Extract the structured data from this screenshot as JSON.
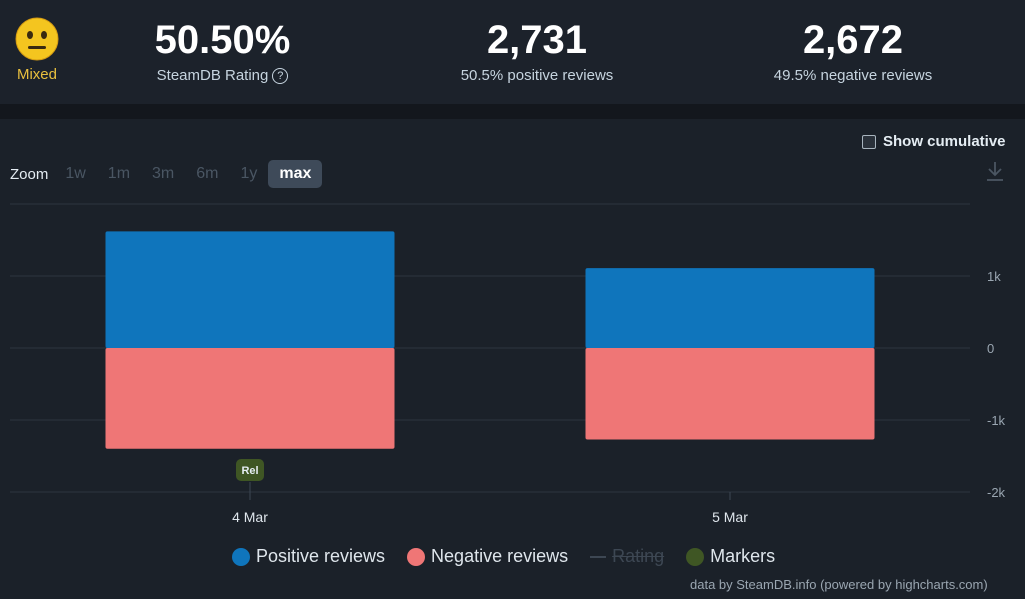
{
  "rating": {
    "label": "Mixed",
    "value": "50.50%",
    "sub": "SteamDB Rating",
    "help_icon": "?"
  },
  "positive": {
    "count": "2,731",
    "sub": "50.5% positive reviews"
  },
  "negative": {
    "count": "2,672",
    "sub": "49.5% negative reviews"
  },
  "controls": {
    "show_cumulative": "Show cumulative",
    "cumulative_checked": false,
    "zoom_label": "Zoom",
    "zoom_options": [
      "1w",
      "1m",
      "3m",
      "6m",
      "1y",
      "max"
    ],
    "zoom_active": "max"
  },
  "chart_data": {
    "type": "bar",
    "categories": [
      "4 Mar",
      "5 Mar"
    ],
    "series": [
      {
        "name": "Positive reviews",
        "values": [
          1620,
          1110
        ],
        "color": "#0f75bc"
      },
      {
        "name": "Negative reviews",
        "values": [
          -1400,
          -1270
        ],
        "color": "#ef7676"
      }
    ],
    "stacked": true,
    "ylim": [
      -2000,
      2000
    ],
    "yticks": [
      {
        "v": 1000,
        "l": "1k"
      },
      {
        "v": 0,
        "l": "0"
      },
      {
        "v": -1000,
        "l": "-1k"
      },
      {
        "v": -2000,
        "l": "-2k"
      }
    ],
    "markers": [
      {
        "category": "4 Mar",
        "label": "Rel"
      }
    ],
    "grid": true,
    "legend": "bottom",
    "legend_extra": [
      {
        "name": "Rating",
        "style": "dash",
        "disabled": true
      },
      {
        "name": "Markers",
        "color": "#3f5624"
      }
    ]
  },
  "credit": "data by SteamDB.info (powered by highcharts.com)"
}
